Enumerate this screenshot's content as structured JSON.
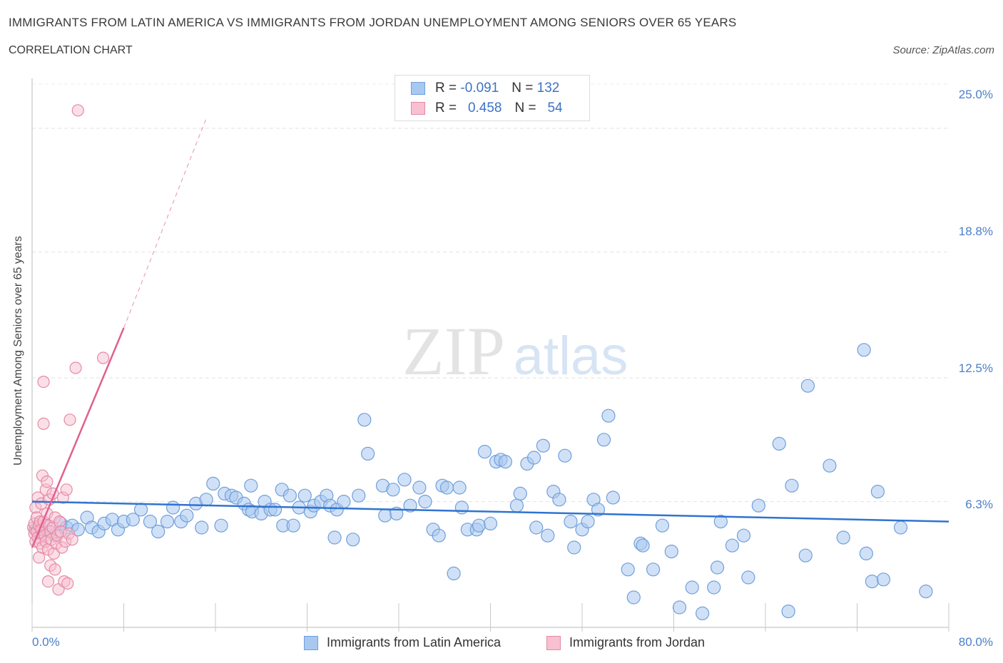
{
  "header": {
    "title": "IMMIGRANTS FROM LATIN AMERICA VS IMMIGRANTS FROM JORDAN UNEMPLOYMENT AMONG SENIORS OVER 65 YEARS",
    "subtitle": "CORRELATION CHART",
    "source": "Source: ZipAtlas.com"
  },
  "watermark": {
    "zip": "ZIP",
    "atlas": "atlas"
  },
  "legend": {
    "rows": [
      {
        "r_label": "R =",
        "r_value": "-0.091",
        "n_label": "N =",
        "n_value": "132",
        "color": "#a9c8f0",
        "border": "#6f9fdc"
      },
      {
        "r_label": "R =",
        "r_value": "0.458",
        "n_label": "N =",
        "n_value": "54",
        "color": "#f8c0d0",
        "border": "#e58aa6"
      }
    ]
  },
  "bottom_legend": {
    "latin": "Immigrants from Latin America",
    "jordan": "Immigrants from Jordan"
  },
  "chart_data": {
    "type": "scatter",
    "title": "IMMIGRANTS FROM LATIN AMERICA VS IMMIGRANTS FROM JORDAN UNEMPLOYMENT AMONG SENIORS OVER 65 YEARS",
    "subtitle": "CORRELATION CHART",
    "xlabel": "",
    "ylabel": "Unemployment Among Seniors over 65 years",
    "xlim": [
      0,
      80
    ],
    "ylim": [
      0,
      27.5
    ],
    "x_tick_labels": [
      "0.0%",
      "80.0%"
    ],
    "y_ticks": [
      6.3,
      12.5,
      18.8,
      25.0
    ],
    "y_tick_labels": [
      "6.3%",
      "12.5%",
      "18.8%",
      "25.0%"
    ],
    "grid": true,
    "legend_position": "top-center",
    "series": [
      {
        "name": "Immigrants from Latin America",
        "color": "#a9c8f0",
        "stroke": "#6f9fdc",
        "trend": {
          "x": [
            0,
            80
          ],
          "y": [
            6.3,
            5.3
          ],
          "color": "#2f74d0"
        },
        "points": [
          [
            0.3,
            4.9
          ],
          [
            0.5,
            5.0
          ],
          [
            0.8,
            4.7
          ],
          [
            1.2,
            5.1
          ],
          [
            1.5,
            4.8
          ],
          [
            2.0,
            4.6
          ],
          [
            2.5,
            5.2
          ],
          [
            3.0,
            5.0
          ],
          [
            3.5,
            5.1
          ],
          [
            4.0,
            4.9
          ],
          [
            4.8,
            5.5
          ],
          [
            5.2,
            5.0
          ],
          [
            5.8,
            4.8
          ],
          [
            6.3,
            5.2
          ],
          [
            7.0,
            5.4
          ],
          [
            7.5,
            4.9
          ],
          [
            8.0,
            5.3
          ],
          [
            8.8,
            5.4
          ],
          [
            9.5,
            5.9
          ],
          [
            10.3,
            5.3
          ],
          [
            11.0,
            4.8
          ],
          [
            11.8,
            5.3
          ],
          [
            12.3,
            6.0
          ],
          [
            13.0,
            5.3
          ],
          [
            13.5,
            5.6
          ],
          [
            14.3,
            6.2
          ],
          [
            14.8,
            5.0
          ],
          [
            15.2,
            6.4
          ],
          [
            15.8,
            7.2
          ],
          [
            16.5,
            5.1
          ],
          [
            16.8,
            6.7
          ],
          [
            17.4,
            6.6
          ],
          [
            17.8,
            6.5
          ],
          [
            18.5,
            6.2
          ],
          [
            18.9,
            5.9
          ],
          [
            19.2,
            5.8
          ],
          [
            19.1,
            7.1
          ],
          [
            20.0,
            5.7
          ],
          [
            20.3,
            6.3
          ],
          [
            20.8,
            5.9
          ],
          [
            21.2,
            5.9
          ],
          [
            21.8,
            6.9
          ],
          [
            21.9,
            5.1
          ],
          [
            22.5,
            6.6
          ],
          [
            22.8,
            5.1
          ],
          [
            23.3,
            6.0
          ],
          [
            23.8,
            6.6
          ],
          [
            24.3,
            5.8
          ],
          [
            24.6,
            6.1
          ],
          [
            25.2,
            6.3
          ],
          [
            25.7,
            6.6
          ],
          [
            26.0,
            6.1
          ],
          [
            26.4,
            4.5
          ],
          [
            26.6,
            5.9
          ],
          [
            27.2,
            6.3
          ],
          [
            28.0,
            4.4
          ],
          [
            28.5,
            6.6
          ],
          [
            29.0,
            10.4
          ],
          [
            29.3,
            8.7
          ],
          [
            30.6,
            7.1
          ],
          [
            30.8,
            5.6
          ],
          [
            31.5,
            6.9
          ],
          [
            31.8,
            5.7
          ],
          [
            32.5,
            7.4
          ],
          [
            33.0,
            6.1
          ],
          [
            33.8,
            7.0
          ],
          [
            34.3,
            6.3
          ],
          [
            35.0,
            4.9
          ],
          [
            35.5,
            4.6
          ],
          [
            35.8,
            7.1
          ],
          [
            36.2,
            7.0
          ],
          [
            36.8,
            2.7
          ],
          [
            37.3,
            7.0
          ],
          [
            37.5,
            6.0
          ],
          [
            38.0,
            4.9
          ],
          [
            38.8,
            4.9
          ],
          [
            39.0,
            5.1
          ],
          [
            39.5,
            8.8
          ],
          [
            40.0,
            5.2
          ],
          [
            40.5,
            8.3
          ],
          [
            40.9,
            8.4
          ],
          [
            41.3,
            8.3
          ],
          [
            42.3,
            6.1
          ],
          [
            42.6,
            6.7
          ],
          [
            43.2,
            8.2
          ],
          [
            43.8,
            8.5
          ],
          [
            44.0,
            5.0
          ],
          [
            44.6,
            9.1
          ],
          [
            45.0,
            4.6
          ],
          [
            45.5,
            6.8
          ],
          [
            46.0,
            6.4
          ],
          [
            46.5,
            8.6
          ],
          [
            47.0,
            5.3
          ],
          [
            47.3,
            4.0
          ],
          [
            48.0,
            4.9
          ],
          [
            48.5,
            5.3
          ],
          [
            49.0,
            6.4
          ],
          [
            49.4,
            5.9
          ],
          [
            49.9,
            9.4
          ],
          [
            50.3,
            10.6
          ],
          [
            50.7,
            6.5
          ],
          [
            52.0,
            2.9
          ],
          [
            52.5,
            1.5
          ],
          [
            53.1,
            4.2
          ],
          [
            53.3,
            4.1
          ],
          [
            54.2,
            2.9
          ],
          [
            55.0,
            5.1
          ],
          [
            55.8,
            3.8
          ],
          [
            56.5,
            1.0
          ],
          [
            57.6,
            2.0
          ],
          [
            58.5,
            0.7
          ],
          [
            59.5,
            2.0
          ],
          [
            59.8,
            3.0
          ],
          [
            60.1,
            5.3
          ],
          [
            61.1,
            4.1
          ],
          [
            62.1,
            4.6
          ],
          [
            62.5,
            2.5
          ],
          [
            63.4,
            6.1
          ],
          [
            65.2,
            9.2
          ],
          [
            66.0,
            0.8
          ],
          [
            66.3,
            7.1
          ],
          [
            67.5,
            3.6
          ],
          [
            67.7,
            12.1
          ],
          [
            69.6,
            8.1
          ],
          [
            70.8,
            4.5
          ],
          [
            72.6,
            13.9
          ],
          [
            72.8,
            3.7
          ],
          [
            73.3,
            2.3
          ],
          [
            73.8,
            6.8
          ],
          [
            74.3,
            2.4
          ],
          [
            75.8,
            5.0
          ],
          [
            78.0,
            1.8
          ]
        ]
      },
      {
        "name": "Immigrants from Jordan",
        "color": "#f8c0d0",
        "stroke": "#e58aa6",
        "trend": {
          "x": [
            0,
            8
          ],
          "y": [
            4.0,
            15.0
          ],
          "x_dash": [
            8,
            15.2
          ],
          "y_dash": [
            15.0,
            25.5
          ],
          "color": "#e06090"
        },
        "points": [
          [
            0.1,
            5.0
          ],
          [
            0.2,
            4.7
          ],
          [
            0.2,
            5.2
          ],
          [
            0.3,
            6.0
          ],
          [
            0.3,
            4.3
          ],
          [
            0.4,
            5.5
          ],
          [
            0.4,
            4.8
          ],
          [
            0.5,
            4.5
          ],
          [
            0.5,
            6.5
          ],
          [
            0.6,
            5.1
          ],
          [
            0.6,
            3.5
          ],
          [
            0.7,
            4.2
          ],
          [
            0.7,
            5.3
          ],
          [
            0.8,
            4.9
          ],
          [
            0.8,
            6.2
          ],
          [
            0.9,
            4.0
          ],
          [
            0.9,
            7.6
          ],
          [
            1.0,
            5.3
          ],
          [
            1.0,
            12.3
          ],
          [
            1.0,
            10.2
          ],
          [
            1.1,
            4.6
          ],
          [
            1.2,
            6.9
          ],
          [
            1.2,
            4.3
          ],
          [
            1.3,
            5.7
          ],
          [
            1.3,
            7.3
          ],
          [
            1.4,
            3.9
          ],
          [
            1.4,
            2.3
          ],
          [
            1.5,
            5.1
          ],
          [
            1.5,
            6.4
          ],
          [
            1.6,
            4.8
          ],
          [
            1.6,
            3.1
          ],
          [
            1.7,
            4.4
          ],
          [
            1.8,
            6.7
          ],
          [
            1.8,
            5.0
          ],
          [
            1.9,
            3.7
          ],
          [
            2.0,
            5.5
          ],
          [
            2.0,
            2.9
          ],
          [
            2.1,
            4.2
          ],
          [
            2.2,
            4.6
          ],
          [
            2.3,
            1.9
          ],
          [
            2.4,
            5.3
          ],
          [
            2.5,
            4.8
          ],
          [
            2.6,
            4.0
          ],
          [
            2.7,
            6.5
          ],
          [
            2.8,
            2.3
          ],
          [
            2.9,
            4.3
          ],
          [
            3.0,
            6.9
          ],
          [
            3.1,
            2.2
          ],
          [
            3.2,
            4.7
          ],
          [
            3.3,
            10.4
          ],
          [
            3.5,
            4.4
          ],
          [
            3.8,
            13.0
          ],
          [
            4.0,
            25.9
          ],
          [
            6.2,
            13.5
          ]
        ]
      }
    ]
  }
}
